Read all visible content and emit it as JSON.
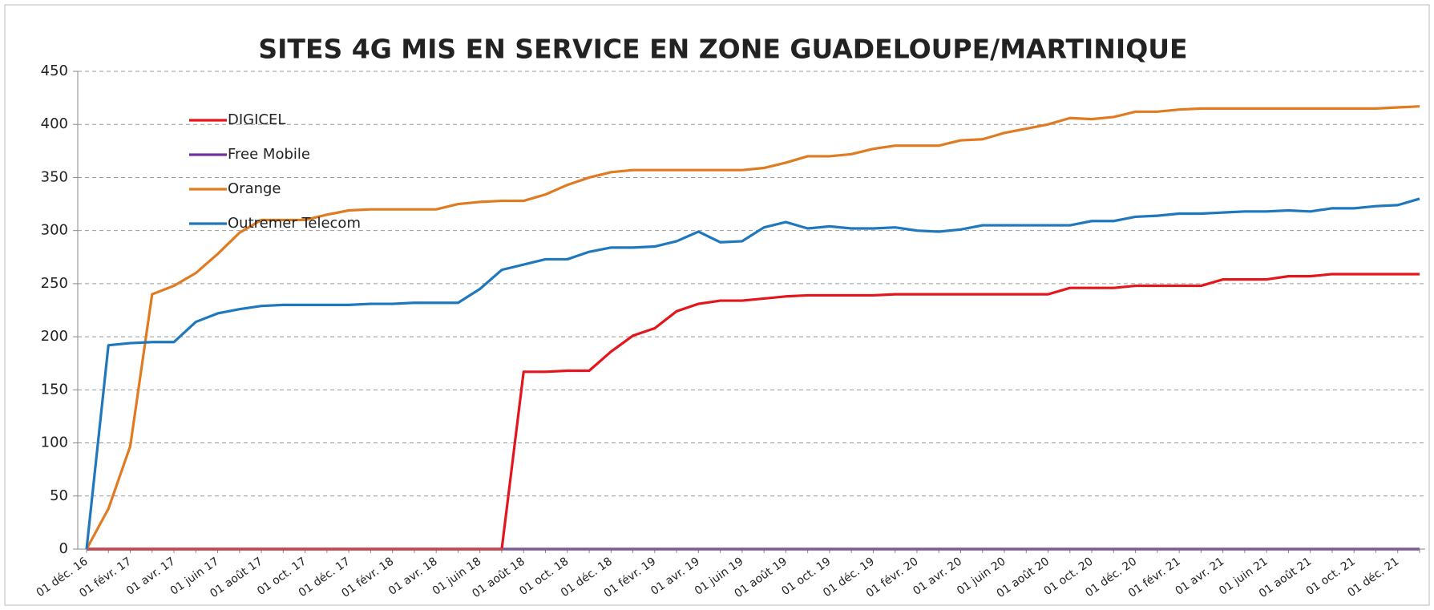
{
  "chart_data": {
    "type": "line",
    "title": "SITES 4G MIS EN SERVICE EN ZONE GUADELOUPE/MARTINIQUE",
    "categories": [
      "01 déc. 16",
      null,
      "01 févr. 17",
      null,
      "01 avr. 17",
      null,
      "01 juin 17",
      null,
      "01 août 17",
      null,
      "01 oct. 17",
      null,
      "01 déc. 17",
      null,
      "01 févr. 18",
      null,
      "01 avr. 18",
      null,
      "01 juin 18",
      null,
      "01 août 18",
      null,
      "01 oct. 18",
      null,
      "01 déc. 18",
      null,
      "01 févr. 19",
      null,
      "01 avr. 19",
      null,
      "01 juin 19",
      null,
      "01 août 19",
      null,
      "01 oct. 19",
      null,
      "01 déc. 19",
      null,
      "01 févr. 20",
      null,
      "01 avr. 20",
      null,
      "01 juin 20",
      null,
      "01 août 20",
      null,
      "01 oct. 20",
      null,
      "01 déc. 20",
      null,
      "01 févr. 21",
      null,
      "01 avr. 21",
      null,
      "01 juin 21",
      null,
      "01 août 21",
      null,
      "01 oct. 21",
      null,
      "01 déc. 21",
      null
    ],
    "series": [
      {
        "name": "DIGICEL",
        "color": "#e3161b",
        "values": [
          0,
          0,
          0,
          0,
          0,
          0,
          0,
          0,
          0,
          0,
          0,
          0,
          0,
          0,
          0,
          0,
          0,
          0,
          0,
          0,
          167,
          167,
          168,
          168,
          186,
          201,
          208,
          224,
          231,
          234,
          234,
          236,
          238,
          239,
          239,
          239,
          239,
          240,
          240,
          240,
          240,
          240,
          240,
          240,
          240,
          246,
          246,
          246,
          248,
          248,
          248,
          248,
          254,
          254,
          254,
          257,
          257,
          259,
          259,
          259,
          259,
          259
        ]
      },
      {
        "name": "Free Mobile",
        "color": "#7030a0",
        "values": [
          0,
          0,
          0,
          0,
          0,
          0,
          0,
          0,
          0,
          0,
          0,
          0,
          0,
          0,
          0,
          0,
          0,
          0,
          0,
          0,
          0,
          0,
          0,
          0,
          0,
          0,
          0,
          0,
          0,
          0,
          0,
          0,
          0,
          0,
          0,
          0,
          0,
          0,
          0,
          0,
          0,
          0,
          0,
          0,
          0,
          0,
          0,
          0,
          0,
          0,
          0,
          0,
          0,
          0,
          0,
          0,
          0,
          0,
          0,
          0,
          0,
          0
        ]
      },
      {
        "name": "Orange",
        "color": "#e07b22",
        "values": [
          0,
          38,
          97,
          240,
          248,
          260,
          278,
          298,
          310,
          310,
          310,
          315,
          319,
          320,
          320,
          320,
          320,
          325,
          327,
          328,
          328,
          334,
          343,
          350,
          355,
          357,
          357,
          357,
          357,
          357,
          357,
          359,
          364,
          370,
          370,
          372,
          377,
          380,
          380,
          380,
          385,
          386,
          392,
          396,
          400,
          406,
          405,
          407,
          412,
          412,
          414,
          415,
          415,
          415,
          415,
          415,
          415,
          415,
          415,
          415,
          416,
          417
        ]
      },
      {
        "name": "Outremer Telecom",
        "color": "#1f78bd",
        "values": [
          0,
          192,
          194,
          195,
          195,
          214,
          222,
          226,
          229,
          230,
          230,
          230,
          230,
          231,
          231,
          232,
          232,
          232,
          245,
          263,
          268,
          273,
          273,
          280,
          284,
          284,
          285,
          290,
          299,
          289,
          290,
          303,
          308,
          302,
          304,
          302,
          302,
          303,
          300,
          299,
          301,
          305,
          305,
          305,
          305,
          305,
          309,
          309,
          313,
          314,
          316,
          316,
          317,
          318,
          318,
          319,
          318,
          321,
          321,
          323,
          324,
          330
        ]
      }
    ],
    "ylim": [
      0,
      450
    ],
    "yticks": [
      0,
      50,
      100,
      150,
      200,
      250,
      300,
      350,
      400,
      450
    ],
    "grid": true,
    "legend": "upper left"
  }
}
